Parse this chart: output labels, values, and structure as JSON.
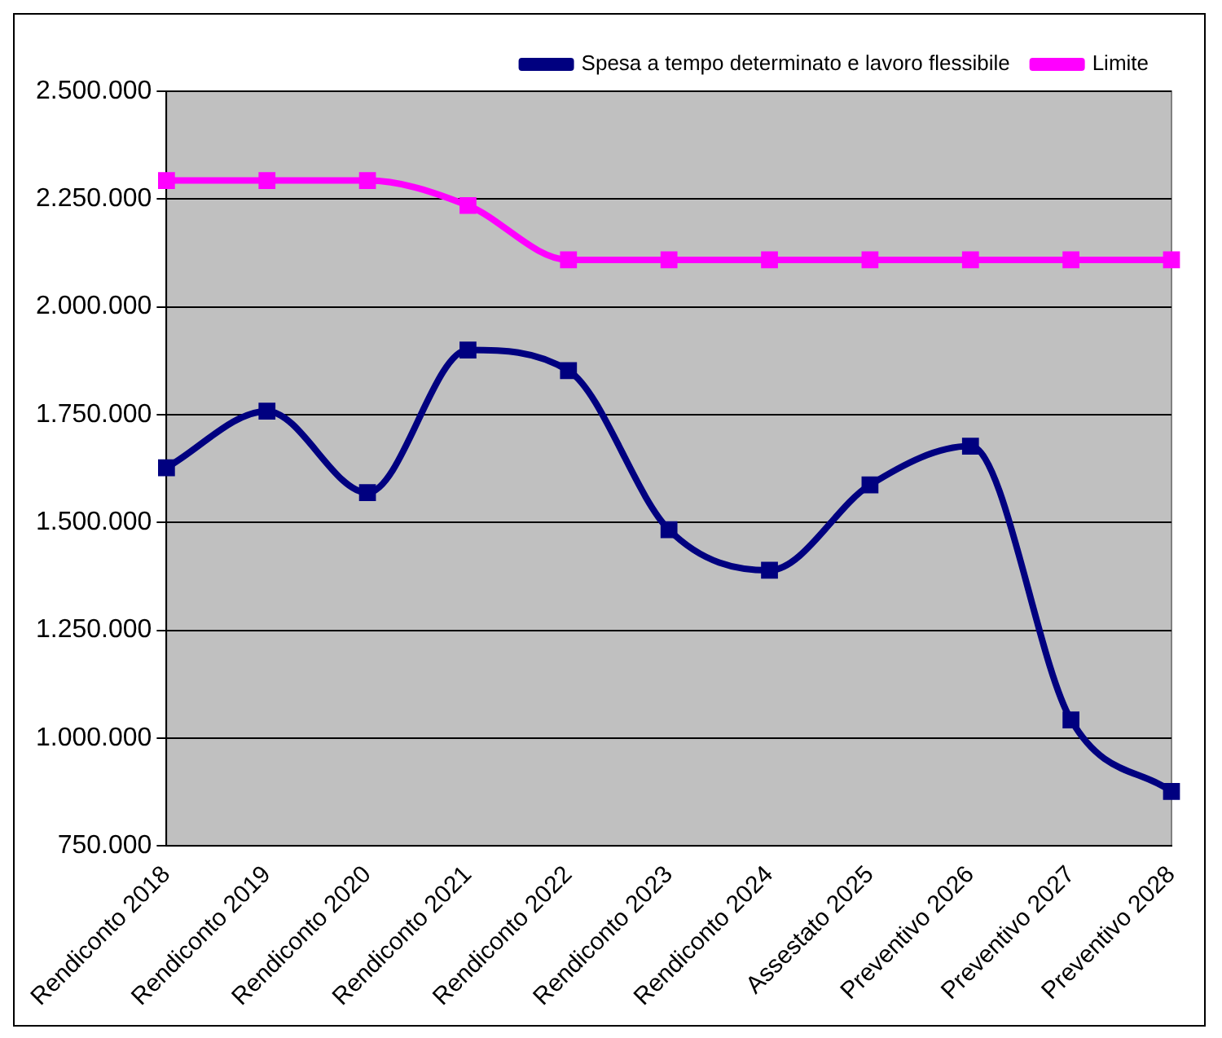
{
  "chart_data": {
    "type": "line",
    "categories": [
      "Rendiconto 2018",
      "Rendiconto 2019",
      "Rendiconto 2020",
      "Rendiconto 2021",
      "Rendiconto 2022",
      "Rendiconto 2023",
      "Rendiconto 2024",
      "Assestato 2025",
      "Preventivo 2026",
      "Preventivo 2027",
      "Preventivo 2028"
    ],
    "series": [
      {
        "name": "Spesa a tempo determinato e lavoro flessibile",
        "color": "#000080",
        "values": [
          1627000,
          1758000,
          1569000,
          1900000,
          1852000,
          1483000,
          1389000,
          1587000,
          1677000,
          1042000,
          876000
        ]
      },
      {
        "name": "Limite",
        "color": "#ff00ff",
        "values": [
          2293000,
          2293000,
          2293000,
          2235000,
          2109000,
          2109000,
          2109000,
          2109000,
          2109000,
          2109000,
          2109000
        ]
      }
    ],
    "ylim": [
      750000,
      2500000
    ],
    "yticks": [
      {
        "value": 750000,
        "label": "750.000"
      },
      {
        "value": 1000000,
        "label": "1.000.000"
      },
      {
        "value": 1250000,
        "label": "1.250.000"
      },
      {
        "value": 1500000,
        "label": "1.500.000"
      },
      {
        "value": 1750000,
        "label": "1.750.000"
      },
      {
        "value": 2000000,
        "label": "2.000.000"
      },
      {
        "value": 2250000,
        "label": "2.250.000"
      },
      {
        "value": 2500000,
        "label": "2.500.000"
      }
    ],
    "grid": "y",
    "legend": "top right",
    "marker": "square",
    "line_style": "solid"
  }
}
